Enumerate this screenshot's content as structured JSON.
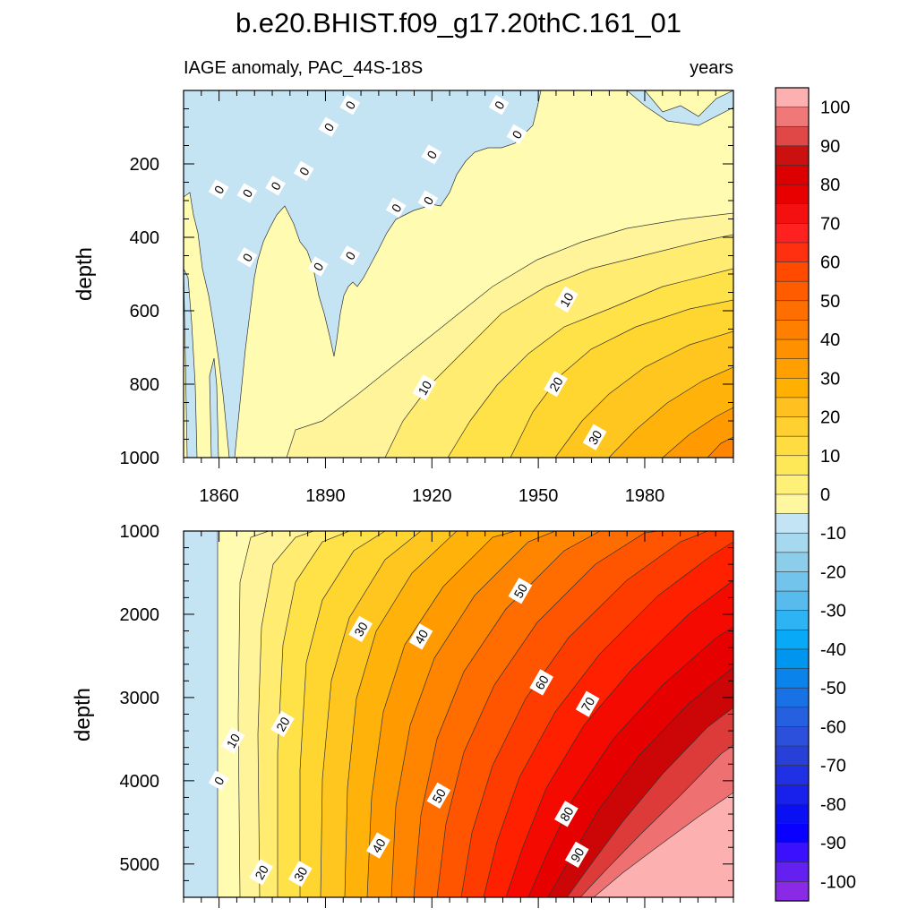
{
  "title": "b.e20.BHIST.f09_g17.20thC.161_01",
  "chart_data": [
    {
      "type": "contour",
      "panel": "upper",
      "left_label": "IAGE anomaly, PAC_44S-18S",
      "right_label": "years",
      "xlabel": "",
      "ylabel": "depth",
      "xlim": [
        1850,
        2005
      ],
      "ylim": [
        0,
        1000
      ],
      "x_ticks": [
        "1860",
        "1890",
        "1920",
        "1950",
        "1980"
      ],
      "y_ticks": [
        "200",
        "400",
        "600",
        "800",
        "1000"
      ],
      "contour_labels": [
        {
          "text": "0",
          "x": 1860,
          "y": 270
        },
        {
          "text": "0",
          "x": 1868,
          "y": 280
        },
        {
          "text": "0",
          "x": 1876,
          "y": 260
        },
        {
          "text": "0",
          "x": 1884,
          "y": 220
        },
        {
          "text": "0",
          "x": 1891,
          "y": 100
        },
        {
          "text": "0",
          "x": 1897,
          "y": 40
        },
        {
          "text": "0",
          "x": 1920,
          "y": 175
        },
        {
          "text": "0",
          "x": 1939,
          "y": 40
        },
        {
          "text": "0",
          "x": 1944,
          "y": 120
        },
        {
          "text": "0",
          "x": 1910,
          "y": 320
        },
        {
          "text": "0",
          "x": 1919,
          "y": 300
        },
        {
          "text": "0",
          "x": 1868,
          "y": 455
        },
        {
          "text": "0",
          "x": 1888,
          "y": 480
        },
        {
          "text": "0",
          "x": 1897,
          "y": 450
        },
        {
          "text": "10",
          "x": 1958,
          "y": 570
        },
        {
          "text": "10",
          "x": 1918,
          "y": 810
        },
        {
          "text": "20",
          "x": 1955,
          "y": 800
        },
        {
          "text": "30",
          "x": 1966,
          "y": 945
        }
      ]
    },
    {
      "type": "contour",
      "panel": "lower",
      "ylabel": "depth",
      "xlim": [
        1850,
        2005
      ],
      "ylim": [
        1000,
        5400
      ],
      "y_ticks": [
        "1000",
        "2000",
        "3000",
        "4000",
        "5000"
      ],
      "contour_labels": [
        {
          "text": "0",
          "x": 1860,
          "y": 4000
        },
        {
          "text": "10",
          "x": 1864,
          "y": 3520
        },
        {
          "text": "20",
          "x": 1878,
          "y": 3320
        },
        {
          "text": "20",
          "x": 1872,
          "y": 5100
        },
        {
          "text": "30",
          "x": 1900,
          "y": 2180
        },
        {
          "text": "30",
          "x": 1883,
          "y": 5120
        },
        {
          "text": "40",
          "x": 1917,
          "y": 2270
        },
        {
          "text": "40",
          "x": 1905,
          "y": 4780
        },
        {
          "text": "50",
          "x": 1945,
          "y": 1720
        },
        {
          "text": "50",
          "x": 1922,
          "y": 4180
        },
        {
          "text": "60",
          "x": 1951,
          "y": 2820
        },
        {
          "text": "70",
          "x": 1964,
          "y": 3080
        },
        {
          "text": "80",
          "x": 1958,
          "y": 4400
        },
        {
          "text": "90",
          "x": 1961,
          "y": 4890
        }
      ]
    }
  ],
  "colorbar": {
    "labels": [
      "100",
      "90",
      "80",
      "70",
      "60",
      "50",
      "40",
      "30",
      "20",
      "10",
      "0",
      "-10",
      "-20",
      "-30",
      "-40",
      "-50",
      "-60",
      "-70",
      "-80",
      "-90",
      "-100"
    ],
    "colors": [
      "#fdb0b0",
      "#f07878",
      "#e04848",
      "#cc1010",
      "#dd0000",
      "#e80000",
      "#f51010",
      "#ff2020",
      "#ff3010",
      "#ff4a00",
      "#ff5c00",
      "#ff6e00",
      "#ff8000",
      "#ff9000",
      "#ffa000",
      "#ffb000",
      "#ffc020",
      "#ffd030",
      "#ffdc40",
      "#ffe858",
      "#fff078",
      "#fff6a0",
      "#c2e4f4",
      "#a6d8ef",
      "#8ccdea",
      "#72c4ec",
      "#58bbee",
      "#2eb4f5",
      "#08aaf8",
      "#0096f0",
      "#0a84ea",
      "#1872e6",
      "#2460e0",
      "#2c50dc",
      "#2840d8",
      "#2030e4",
      "#1820ec",
      "#0a10f4",
      "#0a00ff",
      "#3a10ff",
      "#6420f0",
      "#8a2ae6"
    ]
  }
}
